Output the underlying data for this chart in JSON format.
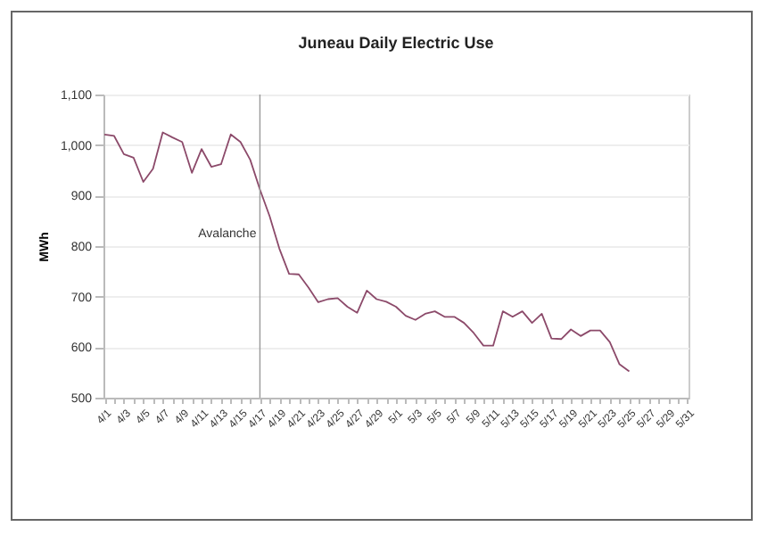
{
  "chart_data": {
    "type": "line",
    "title": "Juneau Daily Electric Use",
    "ylabel": "MWh",
    "categories": [
      "4/1",
      null,
      "4/3",
      null,
      "4/5",
      null,
      "4/7",
      null,
      "4/9",
      null,
      "4/11",
      null,
      "4/13",
      null,
      "4/15",
      null,
      "4/17",
      null,
      "4/19",
      null,
      "4/21",
      null,
      "4/23",
      null,
      "4/25",
      null,
      "4/27",
      null,
      "4/29",
      null,
      "5/1",
      null,
      "5/3",
      null,
      "5/5",
      null,
      "5/7",
      null,
      "5/9",
      null,
      "5/11",
      null,
      "5/13",
      null,
      "5/15",
      null,
      "5/17",
      null,
      "5/19",
      null,
      "5/21",
      null,
      "5/23",
      null,
      "5/25",
      null,
      "5/27",
      null,
      "5/29",
      null,
      "5/31"
    ],
    "series": [
      {
        "color": "#8c4a6a",
        "values": [
          1021,
          1018,
          982,
          975,
          927,
          953,
          1025,
          1015,
          1006,
          945,
          992,
          957,
          962,
          1021,
          1006,
          971,
          912,
          859,
          795,
          745,
          744,
          718,
          689,
          695,
          697,
          680,
          668,
          712,
          695,
          690,
          680,
          662,
          654,
          666,
          671,
          660,
          660,
          648,
          628,
          603,
          603,
          671,
          660,
          671,
          648,
          666,
          617,
          616,
          635,
          622,
          633,
          633,
          610,
          566,
          552,
          null,
          null,
          null,
          null,
          null,
          null
        ]
      }
    ],
    "ylim": [
      500,
      1100
    ],
    "yticks": [
      500,
      600,
      700,
      800,
      900,
      {
        "value": 1000,
        "label": "1,000"
      },
      {
        "value": 1100,
        "label": "1,100"
      }
    ],
    "grid": "y",
    "marker": "none",
    "line_style": "solid",
    "ref_lines": [
      {
        "axis": "x",
        "value": "4/17",
        "label": "Avalanche",
        "color": "#999999"
      }
    ]
  }
}
